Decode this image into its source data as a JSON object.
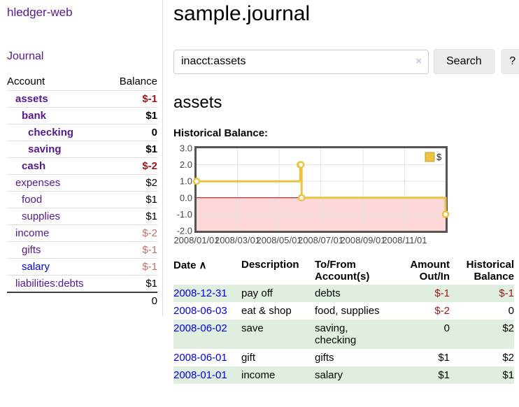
{
  "sidebar": {
    "brand": "hledger-web",
    "journal_link": "Journal",
    "accounts": {
      "col_account": "Account",
      "col_balance": "Balance",
      "rows": [
        {
          "name": "assets",
          "indent": 1,
          "bold": true,
          "color": "purple",
          "balance": "$-1",
          "neg": "strong"
        },
        {
          "name": "bank",
          "indent": 2,
          "bold": true,
          "color": "purple",
          "balance": "$1",
          "neg": null
        },
        {
          "name": "checking",
          "indent": 3,
          "bold": true,
          "color": "purple",
          "balance": "0",
          "neg": null
        },
        {
          "name": "saving",
          "indent": 3,
          "bold": true,
          "color": "purple",
          "balance": "$1",
          "neg": null
        },
        {
          "name": "cash",
          "indent": 2,
          "bold": true,
          "color": "purple",
          "balance": "$-2",
          "neg": "strong"
        },
        {
          "name": "expenses",
          "indent": 1,
          "bold": false,
          "color": "purple",
          "balance": "$2",
          "neg": null
        },
        {
          "name": "food",
          "indent": 2,
          "bold": false,
          "color": "purple",
          "balance": "$1",
          "neg": null
        },
        {
          "name": "supplies",
          "indent": 2,
          "bold": false,
          "color": "purple",
          "balance": "$1",
          "neg": null
        },
        {
          "name": "income",
          "indent": 1,
          "bold": false,
          "color": "purple",
          "balance": "$-2",
          "neg": "soft"
        },
        {
          "name": "gifts",
          "indent": 2,
          "bold": false,
          "color": "purple",
          "balance": "$-1",
          "neg": "soft"
        },
        {
          "name": "salary",
          "indent": 2,
          "bold": false,
          "color": "blue",
          "balance": "$-1",
          "neg": "soft"
        },
        {
          "name": "liabilities:debts",
          "indent": 1,
          "bold": false,
          "color": "purple",
          "balance": "$1",
          "neg": null
        }
      ],
      "total": "0"
    }
  },
  "main": {
    "title": "sample.journal",
    "search": {
      "value": "inacct:assets",
      "clear_icon": "×",
      "button_label": "Search",
      "help_label": "?"
    },
    "account_heading": "assets",
    "chart_label": "Historical Balance:"
  },
  "chart_data": {
    "type": "line",
    "step": true,
    "title": "Historical Balance:",
    "x_range": [
      "2008-01-01",
      "2008-12-31"
    ],
    "ylim": [
      -2,
      3
    ],
    "ytick_labels": [
      "3.0",
      "2.0",
      "1.0",
      "0.0",
      "-1.0",
      "-2.0"
    ],
    "ytick_values": [
      3,
      2,
      1,
      0,
      -1,
      -2
    ],
    "xtick_labels": [
      "2008/01/01",
      "2008/03/01",
      "2008/05/01",
      "2008/07/01",
      "2008/09/01",
      "2008/11/01"
    ],
    "series": [
      {
        "name": "$",
        "color": "#edc240",
        "points": [
          [
            "2008-01-01",
            1
          ],
          [
            "2008-06-01",
            2
          ],
          [
            "2008-06-02",
            2
          ],
          [
            "2008-06-03",
            0
          ],
          [
            "2008-12-31",
            -1
          ]
        ]
      }
    ],
    "legend_position": "top-right",
    "negative_fill": "#fbd7d7",
    "zero_line_color": "#a40000",
    "grid_color": "#e4e4e4",
    "border_color": "#545454",
    "tick_text_color": "#474747"
  },
  "register": {
    "columns": [
      "Date",
      "Description",
      "To/From Account(s)",
      "Amount Out/In",
      "Historical Balance"
    ],
    "sort_icon": "∧",
    "rows": [
      {
        "date": "2008-12-31",
        "description": "pay off",
        "accounts": "debts",
        "amount": "$-1",
        "amount_neg": true,
        "balance": "$-1",
        "balance_neg": true
      },
      {
        "date": "2008-06-03",
        "description": "eat & shop",
        "accounts": "food, supplies",
        "amount": "$-2",
        "amount_neg": true,
        "balance": "0",
        "balance_neg": false
      },
      {
        "date": "2008-06-02",
        "description": "save",
        "accounts": "saving, checking",
        "amount": "0",
        "amount_neg": false,
        "balance": "$2",
        "balance_neg": false
      },
      {
        "date": "2008-06-01",
        "description": "gift",
        "accounts": "gifts",
        "amount": "$1",
        "amount_neg": false,
        "balance": "$2",
        "balance_neg": false
      },
      {
        "date": "2008-01-01",
        "description": "income",
        "accounts": "salary",
        "amount": "$1",
        "amount_neg": false,
        "balance": "$1",
        "balance_neg": false
      }
    ]
  },
  "colors": {
    "link_purple": "#551a8b",
    "link_blue": "#0000e0",
    "negative_strong": "#9d1616",
    "negative_soft": "#c1706c",
    "row_green": "#dfeedf",
    "series_gold": "#edc240"
  }
}
